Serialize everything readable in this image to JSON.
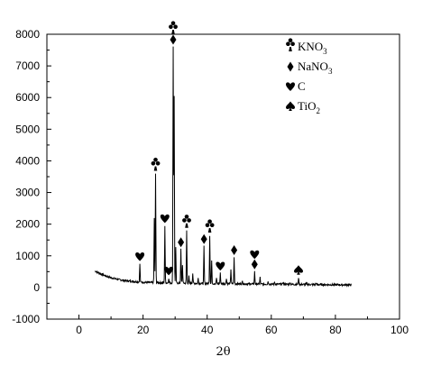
{
  "chart_data": {
    "type": "line",
    "title": "",
    "xlabel": "2θ",
    "ylabel": "",
    "xlim": [
      -10,
      100
    ],
    "ylim": [
      -1000,
      8000
    ],
    "xticks": [
      0,
      20,
      40,
      60,
      80,
      100
    ],
    "yticks": [
      -1000,
      0,
      1000,
      2000,
      3000,
      4000,
      5000,
      6000,
      7000,
      8000
    ],
    "grid": false,
    "legend_position": "top-right",
    "colors": {
      "line": "#000000",
      "axes": "#000000"
    },
    "series": [
      {
        "baseline": [
          [
            5,
            520
          ],
          [
            7,
            420
          ],
          [
            9,
            340
          ],
          [
            11,
            280
          ],
          [
            13,
            240
          ],
          [
            15,
            210
          ],
          [
            17,
            190
          ],
          [
            19,
            170
          ],
          [
            21,
            160
          ],
          [
            25,
            150
          ],
          [
            30,
            140
          ],
          [
            40,
            125
          ],
          [
            50,
            115
          ],
          [
            60,
            105
          ],
          [
            70,
            95
          ],
          [
            80,
            85
          ],
          [
            85,
            80
          ]
        ],
        "peaks": [
          [
            19.0,
            750
          ],
          [
            23.5,
            2200
          ],
          [
            23.9,
            3600
          ],
          [
            26.8,
            1950
          ],
          [
            28.0,
            300
          ],
          [
            29.4,
            7600
          ],
          [
            29.7,
            6050
          ],
          [
            30.2,
            1250
          ],
          [
            31.8,
            1200
          ],
          [
            32.3,
            700
          ],
          [
            33.6,
            1800
          ],
          [
            34.3,
            350
          ],
          [
            35.5,
            450
          ],
          [
            37.2,
            300
          ],
          [
            39.0,
            1300
          ],
          [
            40.8,
            1650
          ],
          [
            41.4,
            850
          ],
          [
            42.9,
            300
          ],
          [
            44.1,
            450
          ],
          [
            46.0,
            300
          ],
          [
            47.4,
            580
          ],
          [
            48.4,
            950
          ],
          [
            51.0,
            200
          ],
          [
            54.8,
            500
          ],
          [
            56.5,
            320
          ],
          [
            59.0,
            200
          ],
          [
            61.0,
            180
          ],
          [
            63.7,
            180
          ],
          [
            65.9,
            170
          ],
          [
            68.5,
            320
          ],
          [
            71.0,
            150
          ],
          [
            74.0,
            140
          ]
        ]
      }
    ],
    "legend": [
      {
        "marker": "club",
        "text": "KNO",
        "sub": "3"
      },
      {
        "marker": "diamond",
        "text": "NaNO",
        "sub": "3"
      },
      {
        "marker": "heart",
        "text": "C",
        "sub": ""
      },
      {
        "marker": "spade",
        "text": "TiO",
        "sub": "2"
      }
    ],
    "annotations": [
      {
        "marker": "club",
        "x": 23.9,
        "y": 3600
      },
      {
        "marker": "diamond",
        "x": 29.4,
        "y": 7600
      },
      {
        "marker": "club",
        "x": 29.4,
        "y": 7600
      },
      {
        "marker": "heart",
        "x": 19.0,
        "y": 750
      },
      {
        "marker": "heart",
        "x": 26.8,
        "y": 1950
      },
      {
        "marker": "heart",
        "x": 28.0,
        "y": 300
      },
      {
        "marker": "diamond",
        "x": 31.8,
        "y": 1200
      },
      {
        "marker": "club",
        "x": 33.6,
        "y": 1800
      },
      {
        "marker": "diamond",
        "x": 39.0,
        "y": 1300
      },
      {
        "marker": "club",
        "x": 40.8,
        "y": 1650
      },
      {
        "marker": "heart",
        "x": 44.1,
        "y": 450
      },
      {
        "marker": "diamond",
        "x": 48.4,
        "y": 950
      },
      {
        "marker": "diamond",
        "x": 54.8,
        "y": 500
      },
      {
        "marker": "heart",
        "x": 54.8,
        "y": 500
      },
      {
        "marker": "spade",
        "x": 68.5,
        "y": 320
      }
    ]
  }
}
